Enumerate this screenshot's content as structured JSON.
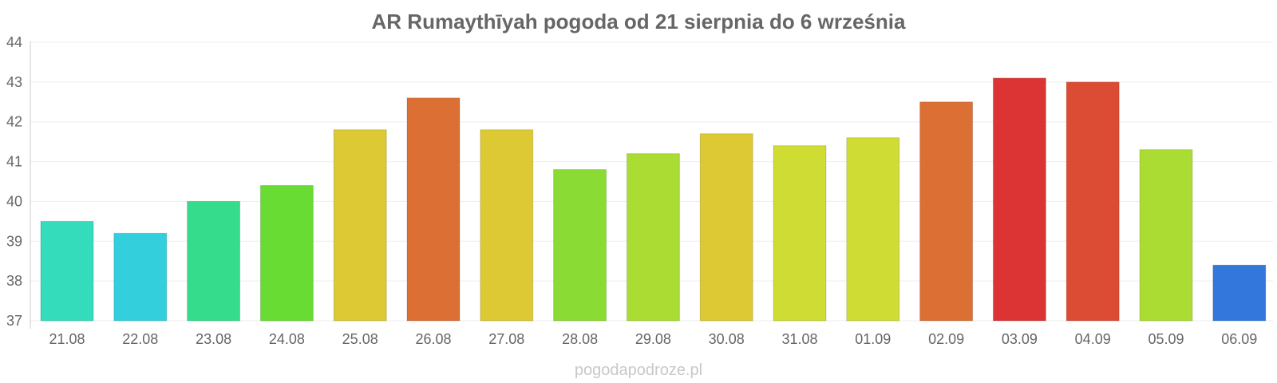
{
  "chart_data": {
    "type": "bar",
    "title": "AR Rumaythīyah pogoda od 21 sierpnia do 6 września",
    "categories": [
      "21.08",
      "22.08",
      "23.08",
      "24.08",
      "25.08",
      "26.08",
      "27.08",
      "28.08",
      "29.08",
      "30.08",
      "31.08",
      "01.09",
      "02.09",
      "03.09",
      "04.09",
      "05.09",
      "06.09"
    ],
    "values": [
      39.5,
      39.2,
      40.0,
      40.4,
      41.8,
      42.6,
      41.8,
      40.8,
      41.2,
      41.7,
      41.4,
      41.6,
      42.5,
      43.1,
      43.0,
      41.3,
      38.4
    ],
    "colors": [
      "#34dcbc",
      "#34cfdc",
      "#34dc8b",
      "#69dc34",
      "#dcc934",
      "#dc7034",
      "#dcc934",
      "#8adc34",
      "#abdc34",
      "#dcc934",
      "#cfdc34",
      "#cfdc34",
      "#dc7034",
      "#dc3434",
      "#dc4c34",
      "#abdc34",
      "#3477dc"
    ],
    "yticks": [
      "37",
      "38",
      "39",
      "40",
      "41",
      "42",
      "43",
      "44"
    ],
    "ylim": [
      37,
      44
    ],
    "xlabel": "",
    "ylabel": "",
    "grid": true
  },
  "watermark": "pogodapodroze.pl"
}
